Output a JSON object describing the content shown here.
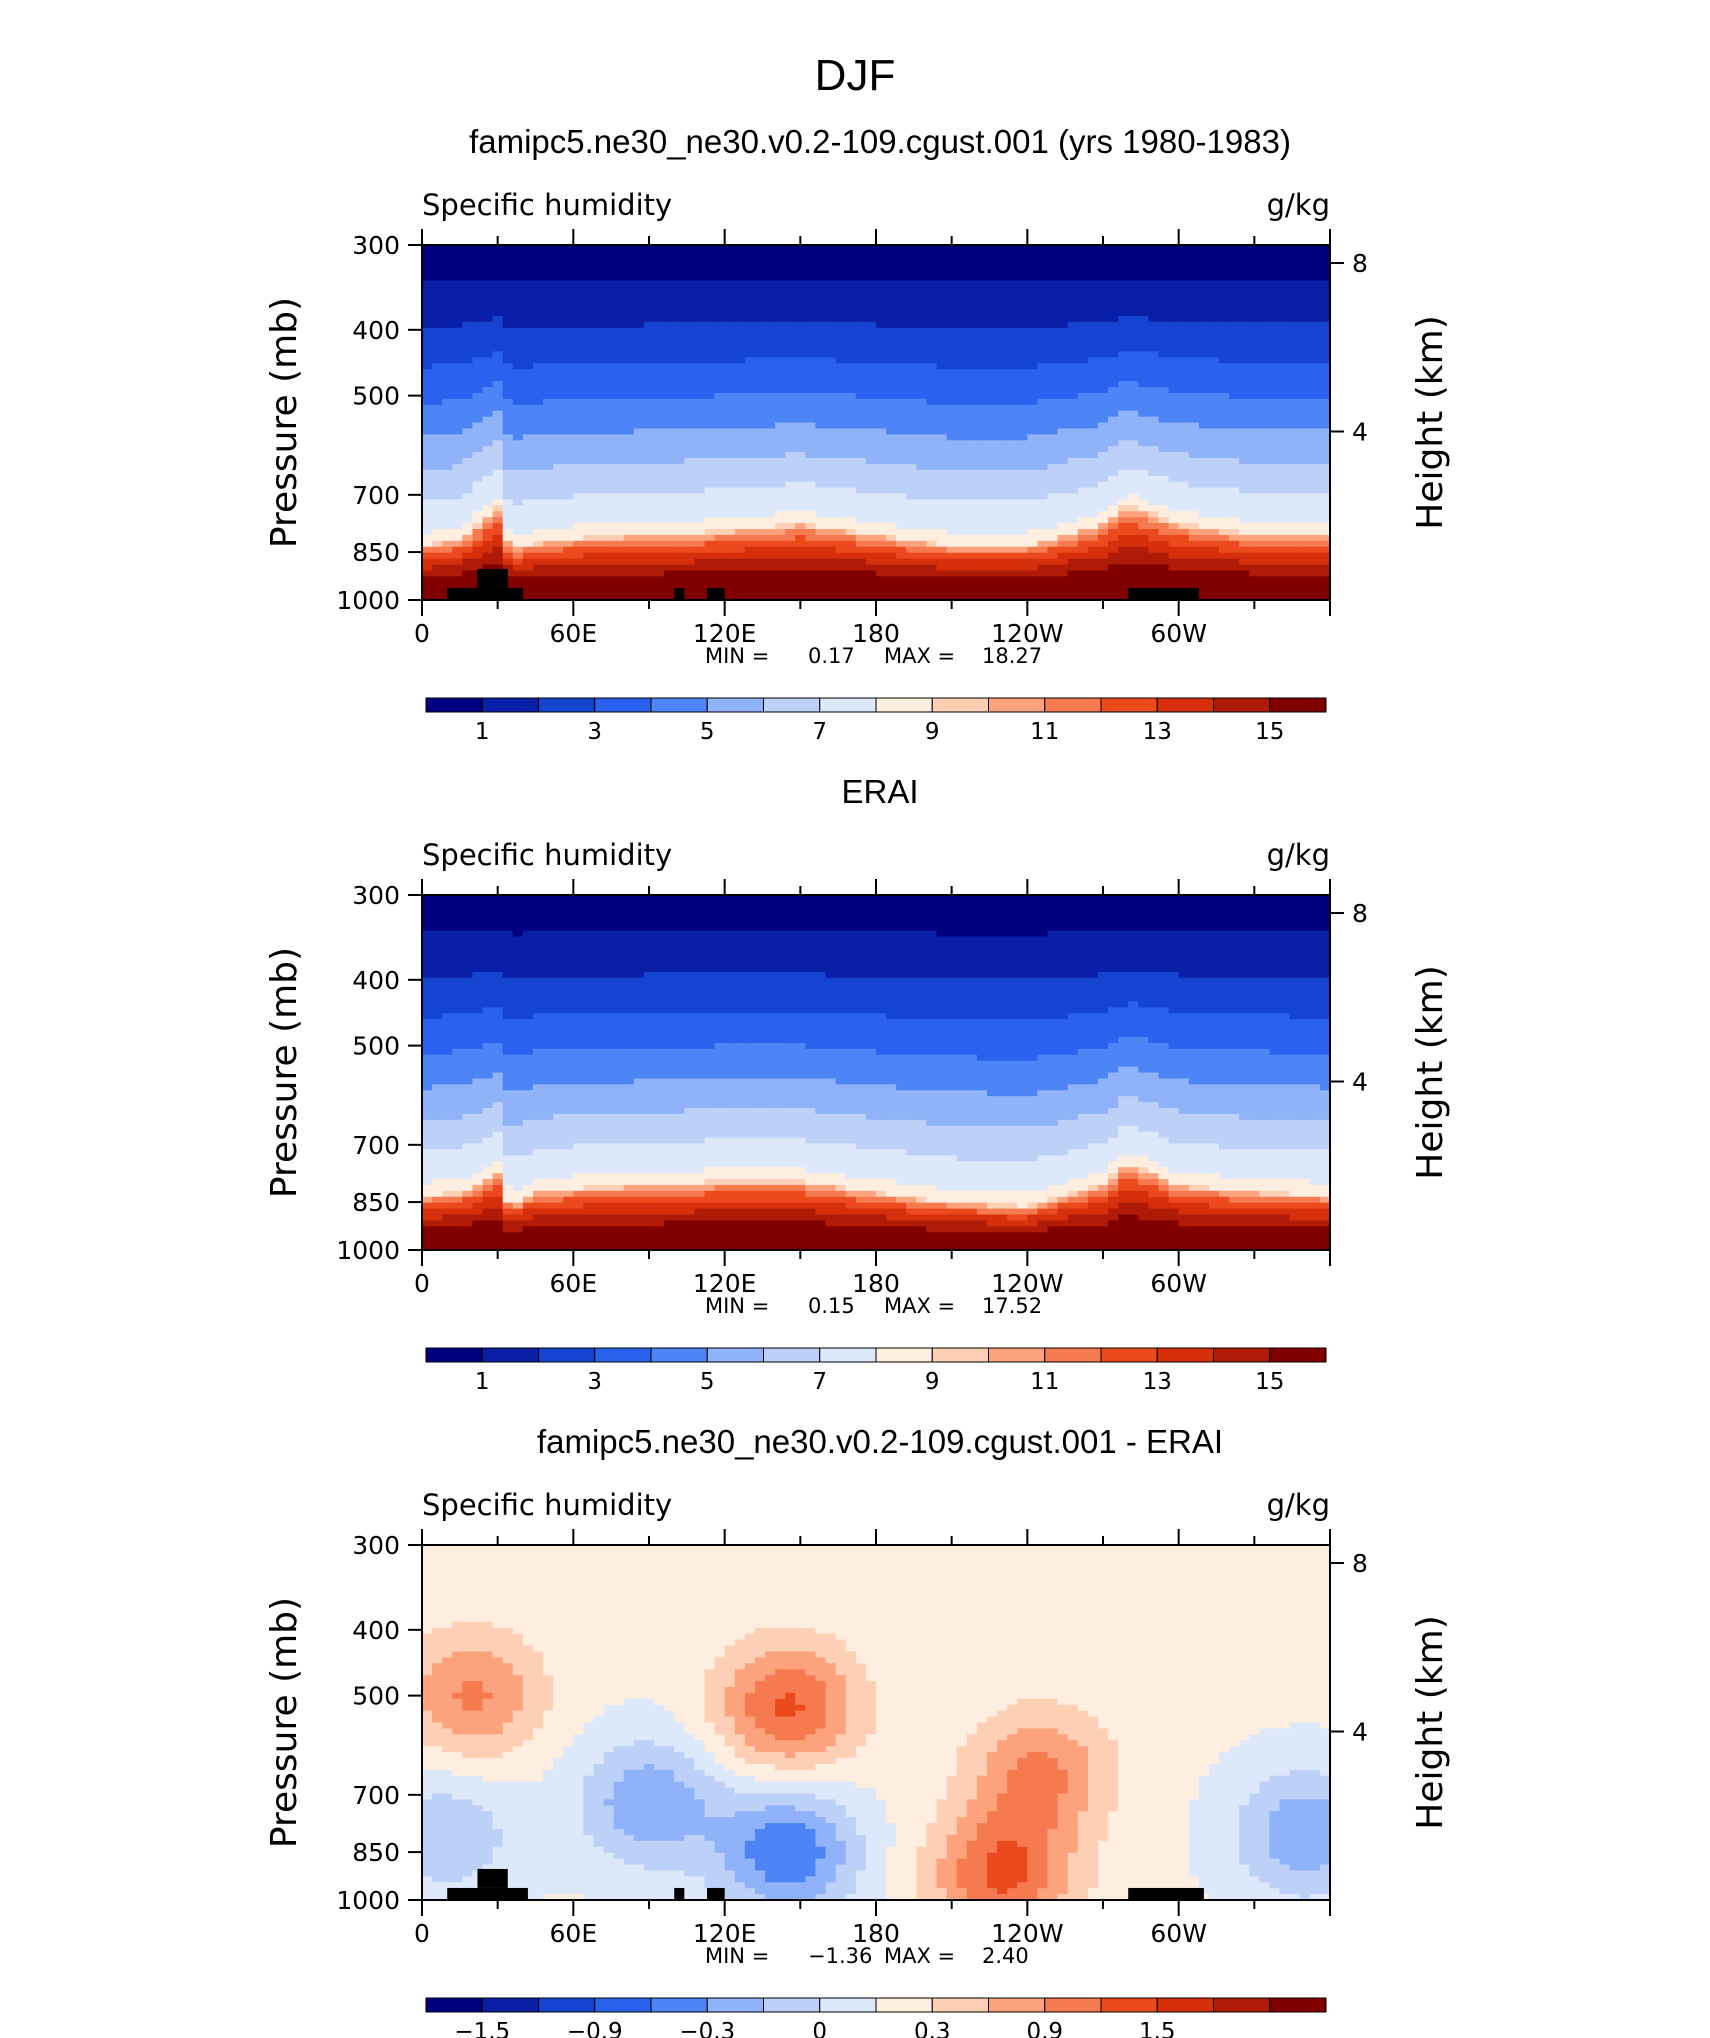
{
  "figure": {
    "title": "DJF",
    "panels": [
      {
        "title": "famipc5.ne30_ne30.v0.2-109.cgust.001 (yrs 1980-1983)",
        "var_label": "Specific humidity",
        "units_label": "g/kg",
        "ylabel": "Pressure (mb)",
        "ylabel_right": "Height (km)",
        "stats": {
          "min_label": "MIN =",
          "min": "0.17",
          "max_label": "MAX =",
          "max": "18.27"
        },
        "colorbar": {
          "colors": [
            "#000080",
            "#0a1fa8",
            "#1544d1",
            "#2a62ef",
            "#4d84f6",
            "#8fb2f8",
            "#bcd0f8",
            "#dde9fa",
            "#fdeee0",
            "#fdcfb5",
            "#fca27d",
            "#f67a4f",
            "#ea4a1d",
            "#d62f0c",
            "#b01b08",
            "#800000"
          ],
          "labels": [
            "1",
            "3",
            "5",
            "7",
            "9",
            "11",
            "13",
            "15"
          ]
        }
      },
      {
        "title": "ERAI",
        "var_label": "Specific humidity",
        "units_label": "g/kg",
        "ylabel": "Pressure (mb)",
        "ylabel_right": "Height (km)",
        "stats": {
          "min_label": "MIN =",
          "min": "0.15",
          "max_label": "MAX =",
          "max": "17.52"
        },
        "colorbar": {
          "colors": [
            "#000080",
            "#0a1fa8",
            "#1544d1",
            "#2a62ef",
            "#4d84f6",
            "#8fb2f8",
            "#bcd0f8",
            "#dde9fa",
            "#fdeee0",
            "#fdcfb5",
            "#fca27d",
            "#f67a4f",
            "#ea4a1d",
            "#d62f0c",
            "#b01b08",
            "#800000"
          ],
          "labels": [
            "1",
            "3",
            "5",
            "7",
            "9",
            "11",
            "13",
            "15"
          ]
        }
      },
      {
        "title": "famipc5.ne30_ne30.v0.2-109.cgust.001 - ERAI",
        "var_label": "Specific humidity",
        "units_label": "g/kg",
        "ylabel": "Pressure (mb)",
        "ylabel_right": "Height (km)",
        "stats": {
          "min_label": "MIN =",
          "min": "−1.36",
          "max_label": "MAX =",
          "max": "2.40"
        },
        "colorbar": {
          "colors": [
            "#000080",
            "#0a1fa8",
            "#1544d1",
            "#2a62ef",
            "#4d84f6",
            "#8fb2f8",
            "#bcd0f8",
            "#dde9fa",
            "#fdeee0",
            "#fdcfb5",
            "#fca27d",
            "#f67a4f",
            "#ea4a1d",
            "#d62f0c",
            "#b01b08",
            "#800000"
          ],
          "labels": [
            "−1.5",
            "−0.9",
            "−0.3",
            "0",
            "0.3",
            "0.9",
            "1.5"
          ]
        }
      }
    ]
  },
  "chart_data": [
    {
      "type": "heatmap",
      "title": "famipc5.ne30_ne30.v0.2-109.cgust.001 (yrs 1980-1983)",
      "field": "Specific humidity",
      "units": "g/kg",
      "xlabel": "",
      "ylabel": "Pressure (mb)",
      "ylabel_right": "Height (km)",
      "x_ticks": [
        "0",
        "60E",
        "120E",
        "180",
        "120W",
        "60W"
      ],
      "y_ticks": [
        "300",
        "400",
        "500",
        "700",
        "850",
        "1000"
      ],
      "y_right_ticks": [
        "8",
        "4"
      ],
      "y_scale": "log",
      "xlim": [
        0,
        360
      ],
      "ylim": [
        1000,
        300
      ],
      "min": 0.17,
      "max": 18.27,
      "contour_levels": [
        1,
        2,
        3,
        4,
        5,
        6,
        7,
        8,
        9,
        10,
        11,
        12,
        13,
        14,
        15
      ],
      "upper_level_q": [
        0.6,
        0.6,
        0.6,
        0.6,
        0.6,
        0.6,
        0.6,
        0.6,
        0.6,
        0.6,
        0.6,
        0.6,
        0.6
      ],
      "upper_level_lon": [
        0,
        30,
        60,
        90,
        120,
        150,
        180,
        210,
        240,
        270,
        300,
        330,
        360
      ],
      "moist_layer_top_pressure": {
        "lon": [
          0,
          15,
          30,
          35,
          40,
          60,
          90,
          120,
          150,
          180,
          210,
          240,
          270,
          280,
          300,
          330,
          360
        ],
        "pressure": [
          830,
          810,
          730,
          840,
          830,
          810,
          800,
          790,
          770,
          800,
          830,
          830,
          770,
          720,
          770,
          800,
          800
        ]
      },
      "masked_topography_lon_ranges": [
        [
          10,
          40
        ],
        [
          100,
          104
        ],
        [
          113,
          120
        ],
        [
          280,
          308
        ]
      ]
    },
    {
      "type": "heatmap",
      "title": "ERAI",
      "field": "Specific humidity",
      "units": "g/kg",
      "xlabel": "",
      "ylabel": "Pressure (mb)",
      "ylabel_right": "Height (km)",
      "x_ticks": [
        "0",
        "60E",
        "120E",
        "180",
        "120W",
        "60W"
      ],
      "y_ticks": [
        "300",
        "400",
        "500",
        "700",
        "850",
        "1000"
      ],
      "y_right_ticks": [
        "8",
        "4"
      ],
      "y_scale": "log",
      "xlim": [
        0,
        360
      ],
      "ylim": [
        1000,
        300
      ],
      "min": 0.15,
      "max": 17.52,
      "contour_levels": [
        1,
        2,
        3,
        4,
        5,
        6,
        7,
        8,
        9,
        10,
        11,
        12,
        13,
        14,
        15
      ],
      "moist_layer_top_pressure": {
        "lon": [
          0,
          15,
          30,
          35,
          45,
          60,
          90,
          120,
          150,
          180,
          210,
          240,
          270,
          280,
          300,
          330,
          360
        ],
        "pressure": [
          830,
          820,
          770,
          860,
          820,
          810,
          800,
          790,
          790,
          820,
          850,
          860,
          800,
          740,
          800,
          820,
          830
        ]
      },
      "masked_topography_lon_ranges": []
    },
    {
      "type": "heatmap",
      "title": "famipc5.ne30_ne30.v0.2-109.cgust.001 - ERAI",
      "field": "Specific humidity",
      "units": "g/kg",
      "xlabel": "",
      "ylabel": "Pressure (mb)",
      "ylabel_right": "Height (km)",
      "x_ticks": [
        "0",
        "60E",
        "120E",
        "180",
        "120W",
        "60W"
      ],
      "y_ticks": [
        "300",
        "400",
        "500",
        "700",
        "850",
        "1000"
      ],
      "y_right_ticks": [
        "8",
        "4"
      ],
      "y_scale": "log",
      "xlim": [
        0,
        360
      ],
      "ylim": [
        1000,
        300
      ],
      "min": -1.36,
      "max": 2.4,
      "contour_levels": [
        -1.5,
        -1.2,
        -0.9,
        -0.6,
        -0.3,
        0,
        0.3,
        0.6,
        0.9,
        1.2,
        1.5
      ],
      "difference_features": [
        {
          "lon": 20,
          "pressure": 500,
          "value": 0.9
        },
        {
          "lon": 145,
          "pressure": 520,
          "value": 1.2
        },
        {
          "lon": 245,
          "pressure": 650,
          "value": 0.9
        },
        {
          "lon": 230,
          "pressure": 920,
          "value": 1.2
        },
        {
          "lon": 90,
          "pressure": 720,
          "value": -0.9
        },
        {
          "lon": 145,
          "pressure": 850,
          "value": -1.2
        },
        {
          "lon": 350,
          "pressure": 800,
          "value": -0.9
        },
        {
          "lon": 10,
          "pressure": 800,
          "value": -0.6
        }
      ],
      "masked_topography_lon_ranges": [
        [
          10,
          42
        ],
        [
          100,
          104
        ],
        [
          113,
          120
        ],
        [
          280,
          310
        ]
      ]
    }
  ]
}
